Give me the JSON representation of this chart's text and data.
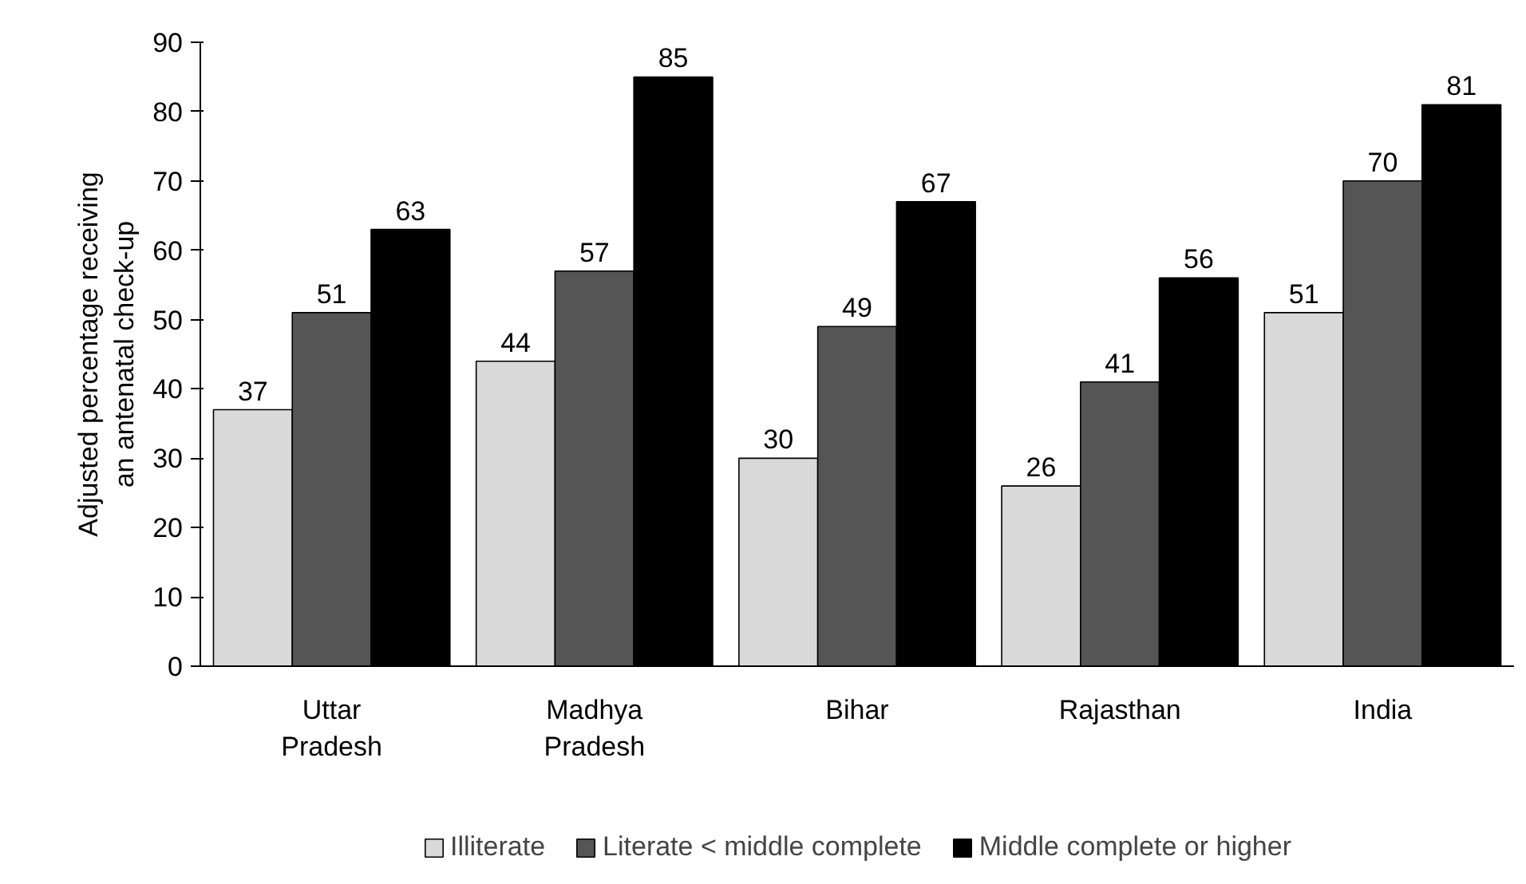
{
  "chart_data": {
    "type": "bar",
    "ylabel": "Adjusted percentage receiving\nan antenatal check-up",
    "categories": [
      "Uttar\nPradesh",
      "Madhya\nPradesh",
      "Bihar",
      "Rajasthan",
      "India"
    ],
    "series": [
      {
        "name": "Illiterate",
        "color": "#d9d9d9",
        "values": [
          37,
          44,
          30,
          26,
          51
        ]
      },
      {
        "name": "Literate < middle complete",
        "color": "#555555",
        "values": [
          51,
          57,
          49,
          41,
          70
        ]
      },
      {
        "name": "Middle complete or higher",
        "color": "#000000",
        "values": [
          63,
          85,
          67,
          56,
          81
        ]
      }
    ],
    "ylim": [
      0,
      90
    ],
    "yticks": [
      0,
      10,
      20,
      30,
      40,
      50,
      60,
      70,
      80,
      90
    ],
    "data_labels": true,
    "grid": false,
    "legend": "bottom"
  }
}
